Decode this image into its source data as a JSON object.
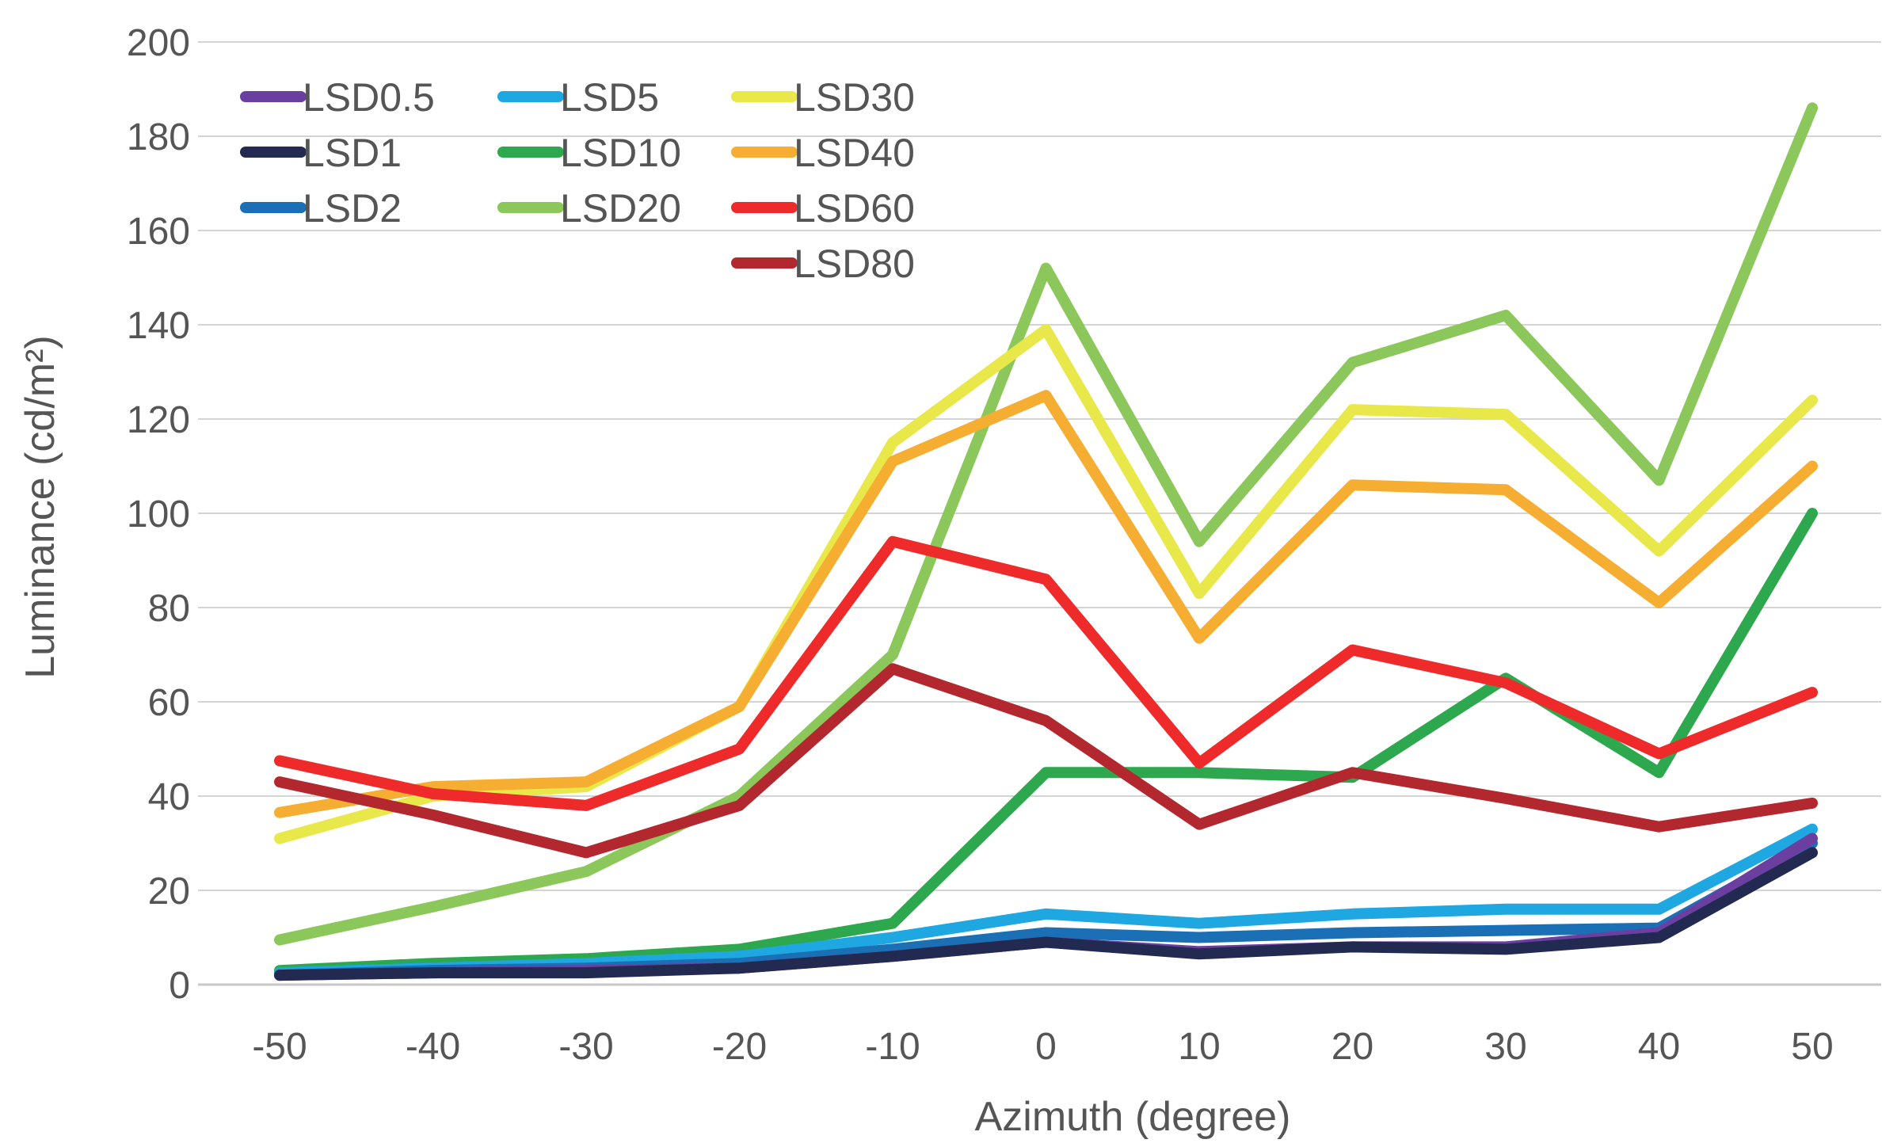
{
  "chart_data": {
    "type": "line",
    "title": "",
    "xlabel": "Azimuth (degree)",
    "ylabel": "Luminance (cd/m²)",
    "ylim": [
      0,
      200
    ],
    "yticks": [
      0,
      20,
      40,
      60,
      80,
      100,
      120,
      140,
      160,
      180,
      200
    ],
    "grid": true,
    "legend_position": "top-left",
    "x": [
      -50,
      -40,
      -30,
      -20,
      -10,
      0,
      10,
      20,
      30,
      40,
      50
    ],
    "series": [
      {
        "name": "LSD0.5",
        "color": "#6b3fa0",
        "values": [
          2,
          2.5,
          3,
          3.5,
          6,
          9,
          7,
          8,
          8,
          11,
          31
        ]
      },
      {
        "name": "LSD1",
        "color": "#222a52",
        "values": [
          2,
          2.5,
          2.5,
          3.5,
          6,
          9,
          6.5,
          8,
          7.5,
          10,
          28
        ]
      },
      {
        "name": "LSD2",
        "color": "#1b6fb5",
        "values": [
          2,
          3,
          3.5,
          4.5,
          7.5,
          11,
          10,
          11,
          11.5,
          12,
          30
        ]
      },
      {
        "name": "LSD5",
        "color": "#1ea7e1",
        "values": [
          2.5,
          3.5,
          4.5,
          6,
          10,
          15,
          13,
          15,
          16,
          16,
          33
        ]
      },
      {
        "name": "LSD10",
        "color": "#2ea84f",
        "values": [
          3,
          4.5,
          5.5,
          7.5,
          13,
          45,
          45,
          44,
          65,
          45,
          100
        ]
      },
      {
        "name": "LSD20",
        "color": "#8bc75a",
        "values": [
          9.5,
          16.5,
          24,
          40,
          70,
          152,
          94,
          132,
          142,
          107,
          186
        ]
      },
      {
        "name": "LSD30",
        "color": "#e8e84a",
        "values": [
          31,
          40,
          42,
          59,
          115,
          139,
          83,
          122,
          121,
          92,
          124
        ]
      },
      {
        "name": "LSD40",
        "color": "#f5ae32",
        "values": [
          36.5,
          42,
          43,
          59,
          111,
          125,
          73.5,
          106,
          105,
          81,
          110
        ]
      },
      {
        "name": "LSD60",
        "color": "#ee2a2a",
        "values": [
          47.5,
          40.5,
          38,
          50,
          94,
          86,
          47,
          71,
          64,
          49,
          62
        ]
      },
      {
        "name": "LSD80",
        "color": "#b2282e",
        "values": [
          43,
          36,
          28,
          38,
          67,
          56,
          34,
          45,
          39.5,
          33.5,
          38.5
        ]
      }
    ]
  }
}
